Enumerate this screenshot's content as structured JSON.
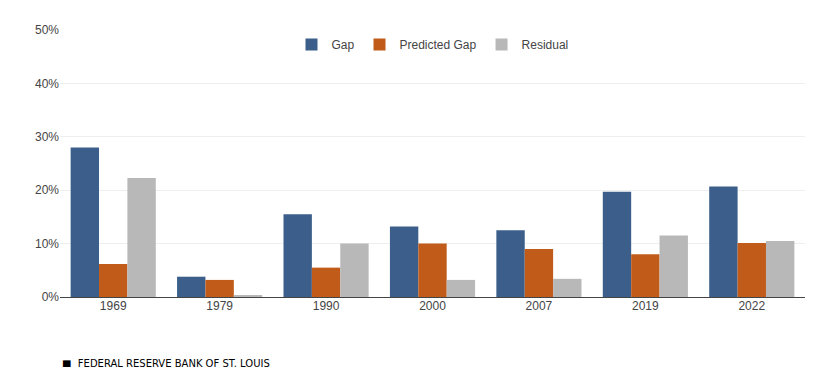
{
  "chart_data": {
    "type": "bar",
    "categories": [
      "1969",
      "1979",
      "1990",
      "2000",
      "2007",
      "2019",
      "2022"
    ],
    "series": [
      {
        "name": "Gap",
        "color": "#3B5F8A",
        "values": [
          28.0,
          3.8,
          15.5,
          13.2,
          12.5,
          19.7,
          20.7
        ]
      },
      {
        "name": "Predicted Gap",
        "color": "#C05B1A",
        "values": [
          6.2,
          3.2,
          5.5,
          10.0,
          9.0,
          8.0,
          10.1
        ]
      },
      {
        "name": "Residual",
        "color": "#B8B8B8",
        "values": [
          22.3,
          0.3,
          10.0,
          3.2,
          3.4,
          11.5,
          10.5
        ]
      }
    ],
    "ylim": [
      0,
      50
    ],
    "yticks": [
      {
        "value": 0,
        "label": "0%"
      },
      {
        "value": 10,
        "label": "10%"
      },
      {
        "value": 20,
        "label": "20%"
      },
      {
        "value": 30,
        "label": "30%"
      },
      {
        "value": 40,
        "label": "40%"
      },
      {
        "value": 50,
        "label": "50%"
      }
    ],
    "grid": true,
    "legend": "upper center",
    "annotations": [
      "■  FEDERAL RESERVE BANK OF ST. LOUIS"
    ]
  }
}
